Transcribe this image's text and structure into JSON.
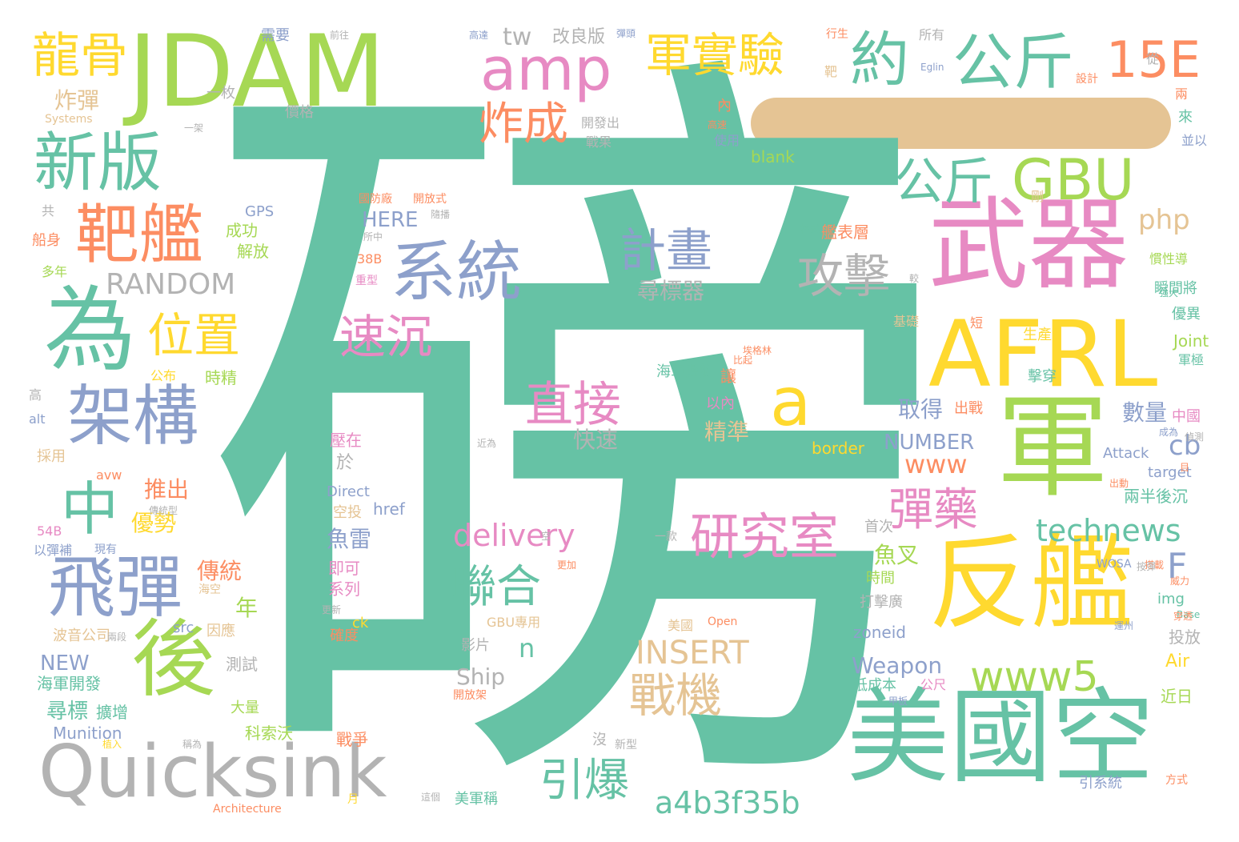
{
  "palette": {
    "green": "#66c2a5",
    "orange": "#fc8d62",
    "blue": "#8da0cb",
    "pink": "#e78ac3",
    "lime": "#a6d854",
    "yellow": "#ffd92f",
    "tan": "#e5c494",
    "gray": "#b3b3b3"
  },
  "words": [
    {
      "text": "磅",
      "color": "#66c2a5"
    },
    {
      "text": "JDAM",
      "color": "#a6d854"
    },
    {
      "text": "武器",
      "color": "#e78ac3"
    },
    {
      "text": "AFRL",
      "color": "#ffd92f"
    },
    {
      "text": "軍",
      "color": "#a6d854"
    },
    {
      "text": "反艦",
      "color": "#ffd92f"
    },
    {
      "text": "美國空",
      "color": "#66c2a5"
    },
    {
      "text": "Quicksink",
      "color": "#b3b3b3"
    },
    {
      "text": "後",
      "color": "#a6d854"
    },
    {
      "text": "為",
      "color": "#66c2a5"
    },
    {
      "text": "系統",
      "color": "#8da0cb"
    },
    {
      "text": "飛彈",
      "color": "#8da0cb"
    },
    {
      "text": "架構",
      "color": "#8da0cb"
    },
    {
      "text": "靶艦",
      "color": "#fc8d62"
    },
    {
      "text": "新版",
      "color": "#66c2a5"
    },
    {
      "text": "龍骨",
      "color": "#ffd92f"
    },
    {
      "text": "amp",
      "color": "#e78ac3"
    },
    {
      "text": "軍實驗",
      "color": "#ffd92f"
    },
    {
      "text": "約",
      "color": "#66c2a5"
    },
    {
      "text": "公斤",
      "color": "#66c2a5"
    },
    {
      "text": "15E",
      "color": "#fc8d62"
    },
    {
      "text": "公斤",
      "color": "#66c2a5"
    },
    {
      "text": "GBU",
      "color": "#a6d854"
    },
    {
      "text": "炸成",
      "color": "#fc8d62"
    },
    {
      "text": "a",
      "color": "#ffd92f"
    },
    {
      "text": "中",
      "color": "#66c2a5"
    },
    {
      "text": "位置",
      "color": "#ffd92f"
    },
    {
      "text": "速沉",
      "color": "#e78ac3"
    },
    {
      "text": "直接",
      "color": "#e78ac3"
    },
    {
      "text": "計畫",
      "color": "#8da0cb"
    },
    {
      "text": "攻擊",
      "color": "#b3b3b3"
    },
    {
      "text": "研究室",
      "color": "#e78ac3"
    },
    {
      "text": "彈藥",
      "color": "#e78ac3"
    },
    {
      "text": "聯合",
      "color": "#66c2a5"
    },
    {
      "text": "戰機",
      "color": "#e5c494"
    },
    {
      "text": "引爆",
      "color": "#66c2a5"
    },
    {
      "text": "www5",
      "color": "#a6d854"
    },
    {
      "text": "delivery",
      "color": "#e78ac3"
    },
    {
      "text": "technews",
      "color": "#66c2a5"
    },
    {
      "text": "a4b3f35b",
      "color": "#66c2a5"
    },
    {
      "text": "INSERT",
      "color": "#e5c494"
    },
    {
      "text": "RANDOM",
      "color": "#b3b3b3"
    },
    {
      "text": "php",
      "color": "#e5c494"
    },
    {
      "text": "F",
      "color": "#8da0cb"
    },
    {
      "text": "www",
      "color": "#fc8d62"
    },
    {
      "text": "cb",
      "color": "#8da0cb"
    },
    {
      "text": "tw",
      "color": "#b3b3b3"
    },
    {
      "text": "n",
      "color": "#66c2a5"
    },
    {
      "text": "NUMBER",
      "color": "#8da0cb"
    },
    {
      "text": "HERE",
      "color": "#8da0cb"
    },
    {
      "text": "尋標器",
      "color": "#b3b3b3"
    },
    {
      "text": "炸彈",
      "color": "#e5c494"
    },
    {
      "text": "Weapon",
      "color": "#8da0cb"
    },
    {
      "text": "Ship",
      "color": "#b3b3b3"
    },
    {
      "text": "魚叉",
      "color": "#a6d854"
    },
    {
      "text": "數量",
      "color": "#8da0cb"
    },
    {
      "text": "取得",
      "color": "#8da0cb"
    },
    {
      "text": "精準",
      "color": "#e5c494"
    },
    {
      "text": "快速",
      "color": "#b3b3b3"
    },
    {
      "text": "魚雷",
      "color": "#8da0cb"
    },
    {
      "text": "推出",
      "color": "#fc8d62"
    },
    {
      "text": "優勢",
      "color": "#ffd92f"
    },
    {
      "text": "傳統",
      "color": "#fc8d62"
    },
    {
      "text": "年",
      "color": "#a6d854"
    },
    {
      "text": "NEW",
      "color": "#8da0cb"
    },
    {
      "text": "Munition",
      "color": "#8da0cb"
    },
    {
      "text": "尋標",
      "color": "#66c2a5"
    },
    {
      "text": "改良版",
      "color": "#b3b3b3"
    },
    {
      "text": "需要",
      "color": "#8da0cb"
    },
    {
      "text": "一枚",
      "color": "#b3b3b3"
    },
    {
      "text": "GPS",
      "color": "#8da0cb"
    },
    {
      "text": "成功",
      "color": "#a6d854"
    },
    {
      "text": "解放",
      "color": "#a6d854"
    },
    {
      "text": "時精",
      "color": "#a6d854"
    },
    {
      "text": "公布",
      "color": "#ffd92f"
    },
    {
      "text": "blank",
      "color": "#a6d854"
    },
    {
      "text": "艦表層",
      "color": "#fc8d62"
    },
    {
      "text": "海軍艦艇",
      "color": "#66c2a5"
    },
    {
      "text": "Joint",
      "color": "#a6d854"
    },
    {
      "text": "Attack",
      "color": "#8da0cb"
    },
    {
      "text": "target",
      "color": "#8da0cb"
    },
    {
      "text": "兩半後沉",
      "color": "#66c2a5"
    },
    {
      "text": "img",
      "color": "#66c2a5"
    },
    {
      "text": "投放",
      "color": "#b3b3b3"
    },
    {
      "text": "近日",
      "color": "#a6d854"
    },
    {
      "text": "Air",
      "color": "#ffd92f"
    },
    {
      "text": "zoneid",
      "color": "#8da0cb"
    },
    {
      "text": "低成本",
      "color": "#66c2a5"
    },
    {
      "text": "打擊廣",
      "color": "#b3b3b3"
    },
    {
      "text": "時間",
      "color": "#a6d854"
    },
    {
      "text": "首次",
      "color": "#b3b3b3"
    },
    {
      "text": "影片",
      "color": "#b3b3b3"
    },
    {
      "text": "GBU專用",
      "color": "#e5c494"
    },
    {
      "text": "確度",
      "color": "#fc8d62"
    },
    {
      "text": "系列",
      "color": "#e78ac3"
    },
    {
      "text": "即可",
      "color": "#e78ac3"
    },
    {
      "text": "空投",
      "color": "#e5c494"
    },
    {
      "text": "Direct",
      "color": "#8da0cb"
    },
    {
      "text": "於",
      "color": "#b3b3b3"
    },
    {
      "text": "壓在",
      "color": "#e78ac3"
    },
    {
      "text": "測試",
      "color": "#b3b3b3"
    },
    {
      "text": "因應",
      "color": "#e5c494"
    },
    {
      "text": "科索沃",
      "color": "#a6d854"
    },
    {
      "text": "戰爭",
      "color": "#fc8d62"
    },
    {
      "text": "大量",
      "color": "#a6d854"
    },
    {
      "text": "擴增",
      "color": "#66c2a5"
    },
    {
      "text": "海軍開發",
      "color": "#66c2a5"
    },
    {
      "text": "波音公司",
      "color": "#e5c494"
    },
    {
      "text": "38B",
      "color": "#fc8d62"
    },
    {
      "text": "54B",
      "color": "#e78ac3"
    },
    {
      "text": "以彈補",
      "color": "#8da0cb"
    },
    {
      "text": "採用",
      "color": "#e5c494"
    },
    {
      "text": "alt",
      "color": "#8da0cb"
    },
    {
      "text": "高",
      "color": "#b3b3b3"
    },
    {
      "text": "多年",
      "color": "#a6d854"
    },
    {
      "text": "船身",
      "color": "#fc8d62"
    },
    {
      "text": "共",
      "color": "#b3b3b3"
    },
    {
      "text": "Systems",
      "color": "#e5c494"
    },
    {
      "text": "價格",
      "color": "#b3b3b3"
    },
    {
      "text": "開發出",
      "color": "#b3b3b3"
    },
    {
      "text": "戰果",
      "color": "#b3b3b3"
    },
    {
      "text": "使用",
      "color": "#8da0cb"
    },
    {
      "text": "內",
      "color": "#fc8d62"
    },
    {
      "text": "剛",
      "color": "#e5c494"
    },
    {
      "text": "靶",
      "color": "#e5c494"
    },
    {
      "text": "行生",
      "color": "#fc8d62"
    },
    {
      "text": "所有",
      "color": "#b3b3b3"
    },
    {
      "text": "設計",
      "color": "#fc8d62"
    },
    {
      "text": "從",
      "color": "#b3b3b3"
    },
    {
      "text": "兩",
      "color": "#fc8d62"
    },
    {
      "text": "來",
      "color": "#66c2a5"
    },
    {
      "text": "並以",
      "color": "#8da0cb"
    },
    {
      "text": "慣性導",
      "color": "#a6d854"
    },
    {
      "text": "瞬間將",
      "color": "#66c2a5"
    },
    {
      "text": "優異",
      "color": "#66c2a5"
    },
    {
      "text": "軍極",
      "color": "#66c2a5"
    },
    {
      "text": "中國",
      "color": "#e78ac3"
    },
    {
      "text": "出戰",
      "color": "#fc8d62"
    },
    {
      "text": "以內",
      "color": "#e78ac3"
    },
    {
      "text": "讓",
      "color": "#fc8d62"
    },
    {
      "text": "擊穿",
      "color": "#66c2a5"
    },
    {
      "text": "生產",
      "color": "#ffd92f"
    },
    {
      "text": "基礎",
      "color": "#e5c494"
    },
    {
      "text": "短",
      "color": "#fc8d62"
    },
    {
      "text": "border",
      "color": "#ffd92f"
    },
    {
      "text": "href",
      "color": "#8da0cb"
    },
    {
      "text": "ck",
      "color": "#ffd92f"
    },
    {
      "text": "src",
      "color": "#8da0cb"
    },
    {
      "text": "avw",
      "color": "#fc8d62"
    },
    {
      "text": "美軍稱",
      "color": "#66c2a5"
    },
    {
      "text": "公尺",
      "color": "#e78ac3"
    },
    {
      "text": "方式",
      "color": "#fc8d62"
    },
    {
      "text": "引系統",
      "color": "#8da0cb"
    },
    {
      "text": "WOSA",
      "color": "#8da0cb"
    },
    {
      "text": "美國",
      "color": "#e5c494"
    },
    {
      "text": "Open",
      "color": "#fc8d62"
    },
    {
      "text": "開放架",
      "color": "#fc8d62"
    },
    {
      "text": "沒",
      "color": "#b3b3b3"
    },
    {
      "text": "新型",
      "color": "#b3b3b3"
    },
    {
      "text": "一款",
      "color": "#b3b3b3"
    },
    {
      "text": "Architecture",
      "color": "#fc8d62"
    },
    {
      "text": "月",
      "color": "#ffd92f"
    },
    {
      "text": "海空",
      "color": "#e5c494"
    },
    {
      "text": "現有",
      "color": "#8da0cb"
    },
    {
      "text": "國防廠",
      "color": "#fc8d62"
    },
    {
      "text": "開放式",
      "color": "#fc8d62"
    },
    {
      "text": "重型",
      "color": "#e78ac3"
    },
    {
      "text": "Eglin",
      "color": "#8da0cb"
    },
    {
      "text": "高達",
      "color": "#8da0cb"
    },
    {
      "text": "前往",
      "color": "#b3b3b3"
    },
    {
      "text": "彈頭",
      "color": "#8da0cb"
    },
    {
      "text": "一架",
      "color": "#b3b3b3"
    },
    {
      "text": "隨播",
      "color": "#b3b3b3"
    },
    {
      "text": "模式",
      "color": "#66c2a5"
    },
    {
      "text": "較",
      "color": "#b3b3b3"
    },
    {
      "text": "埃格林",
      "color": "#fc8d62"
    },
    {
      "text": "比起",
      "color": "#fc8d62"
    },
    {
      "text": "傳統型",
      "color": "#b3b3b3"
    },
    {
      "text": "運州",
      "color": "#8da0cb"
    },
    {
      "text": "更新",
      "color": "#b3b3b3"
    },
    {
      "text": "Base",
      "color": "#66c2a5"
    },
    {
      "text": "威力",
      "color": "#fc8d62"
    },
    {
      "text": "兩段",
      "color": "#b3b3b3"
    },
    {
      "text": "這個",
      "color": "#b3b3b3"
    },
    {
      "text": "稱為",
      "color": "#b3b3b3"
    },
    {
      "text": "植入",
      "color": "#ffd92f"
    },
    {
      "text": "甲板",
      "color": "#8da0cb"
    },
    {
      "text": "穿透",
      "color": "#fc8d62"
    },
    {
      "text": "搭載",
      "color": "#fc8d62"
    },
    {
      "text": "更加",
      "color": "#fc8d62"
    },
    {
      "text": "空",
      "color": "#b3b3b3"
    },
    {
      "text": "成為",
      "color": "#8da0cb"
    },
    {
      "text": "出動",
      "color": "#fc8d62"
    },
    {
      "text": "近為",
      "color": "#b3b3b3"
    },
    {
      "text": "按彈",
      "color": "#b3b3b3"
    },
    {
      "text": "強大",
      "color": "#66c2a5"
    },
    {
      "text": "目",
      "color": "#fc8d62"
    },
    {
      "text": "偵測",
      "color": "#b3b3b3"
    },
    {
      "text": "所中",
      "color": "#b3b3b3"
    },
    {
      "text": "高速",
      "color": "#fc8d62"
    }
  ]
}
